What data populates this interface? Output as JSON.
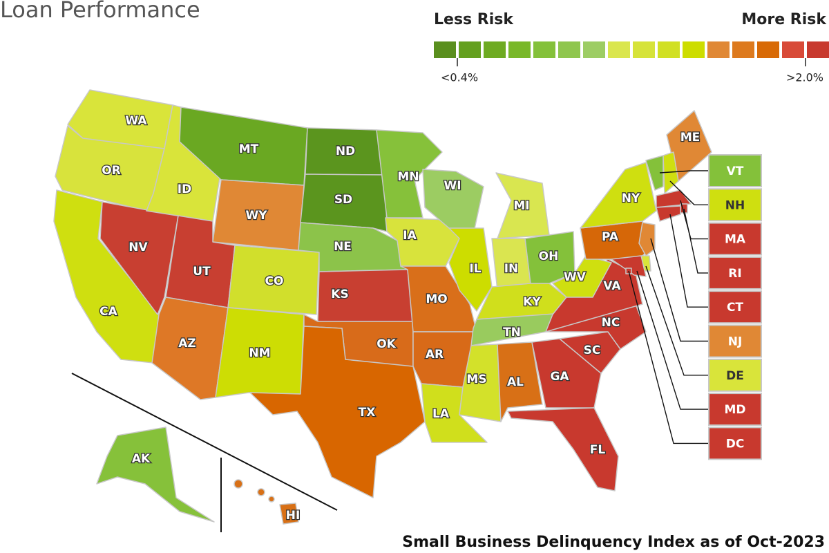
{
  "title": "Loan Performance",
  "legend": {
    "less": "Less Risk",
    "more": "More Risk",
    "low": "<0.4%",
    "high": ">2.0%",
    "colors": [
      "#5a8f1e",
      "#64a01f",
      "#6eab22",
      "#79b829",
      "#84c13a",
      "#8fc64e",
      "#9dcd64",
      "#dae64e",
      "#d6e33a",
      "#d1e024",
      "#cddd00",
      "#e08835",
      "#dd7a1e",
      "#d86a06",
      "#d84a38",
      "#c8392e"
    ]
  },
  "footer": "Small Business Delinquency Index as of Oct-2023",
  "states": [
    {
      "abbr": "WA",
      "color": "#d9e43a"
    },
    {
      "abbr": "OR",
      "color": "#d8e33c"
    },
    {
      "abbr": "CA",
      "color": "#cfdf10"
    },
    {
      "abbr": "NV",
      "color": "#c83f31"
    },
    {
      "abbr": "ID",
      "color": "#d9e43a"
    },
    {
      "abbr": "MT",
      "color": "#6aa822"
    },
    {
      "abbr": "WY",
      "color": "#e08835"
    },
    {
      "abbr": "UT",
      "color": "#c83f31"
    },
    {
      "abbr": "CO",
      "color": "#d1df2c"
    },
    {
      "abbr": "AZ",
      "color": "#de7826"
    },
    {
      "abbr": "NM",
      "color": "#cddd04"
    },
    {
      "abbr": "ND",
      "color": "#5b951e"
    },
    {
      "abbr": "SD",
      "color": "#5b951e"
    },
    {
      "abbr": "NE",
      "color": "#8cc34a"
    },
    {
      "abbr": "KS",
      "color": "#c83f31"
    },
    {
      "abbr": "OK",
      "color": "#d86b1a"
    },
    {
      "abbr": "TX",
      "color": "#d86600"
    },
    {
      "abbr": "MN",
      "color": "#86c13a"
    },
    {
      "abbr": "IA",
      "color": "#d8e33c"
    },
    {
      "abbr": "MO",
      "color": "#d96f1a"
    },
    {
      "abbr": "AR",
      "color": "#d86a18"
    },
    {
      "abbr": "LA",
      "color": "#d0df1c"
    },
    {
      "abbr": "WI",
      "color": "#9ccc62"
    },
    {
      "abbr": "IL",
      "color": "#cddd00"
    },
    {
      "abbr": "MI",
      "color": "#d9e650"
    },
    {
      "abbr": "IN",
      "color": "#dae550"
    },
    {
      "abbr": "OH",
      "color": "#84c13a"
    },
    {
      "abbr": "KY",
      "color": "#d0df1c"
    },
    {
      "abbr": "TN",
      "color": "#99cb5e"
    },
    {
      "abbr": "MS",
      "color": "#d3e12a"
    },
    {
      "abbr": "AL",
      "color": "#d87016"
    },
    {
      "abbr": "GA",
      "color": "#c8392e"
    },
    {
      "abbr": "FL",
      "color": "#c8392e"
    },
    {
      "abbr": "SC",
      "color": "#c8392e"
    },
    {
      "abbr": "NC",
      "color": "#c8392e"
    },
    {
      "abbr": "VA",
      "color": "#c8392e"
    },
    {
      "abbr": "WV",
      "color": "#cfdf10"
    },
    {
      "abbr": "PA",
      "color": "#d66708"
    },
    {
      "abbr": "NY",
      "color": "#cfdf10"
    },
    {
      "abbr": "ME",
      "color": "#e08835"
    },
    {
      "abbr": "AK",
      "color": "#86c13a"
    },
    {
      "abbr": "HI",
      "color": "#d87016"
    },
    {
      "abbr": "VT",
      "color": "#84c13a",
      "callout": true
    },
    {
      "abbr": "NH",
      "color": "#cfdf10",
      "callout": true
    },
    {
      "abbr": "MA",
      "color": "#c8392e",
      "callout": true
    },
    {
      "abbr": "RI",
      "color": "#c8392e",
      "callout": true
    },
    {
      "abbr": "CT",
      "color": "#c8392e",
      "callout": true
    },
    {
      "abbr": "NJ",
      "color": "#e08835",
      "callout": true
    },
    {
      "abbr": "DE",
      "color": "#d9e43a",
      "callout": true
    },
    {
      "abbr": "MD",
      "color": "#c8392e",
      "callout": true
    },
    {
      "abbr": "DC",
      "color": "#c8392e",
      "callout": true
    }
  ]
}
